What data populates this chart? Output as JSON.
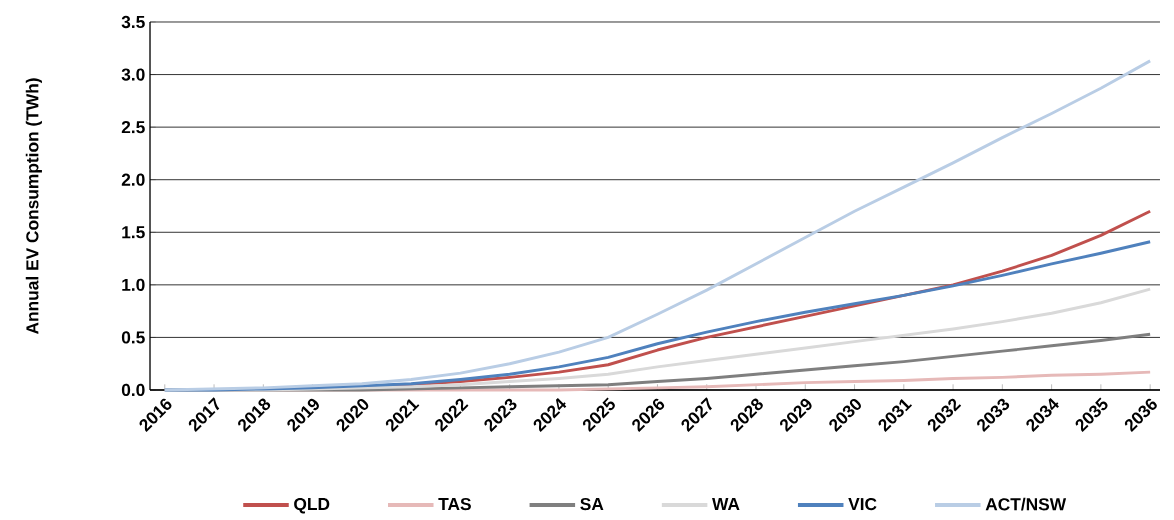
{
  "chart_data": {
    "type": "line",
    "ylabel": "Annual EV Consumption (TWh)",
    "categories": [
      "2016",
      "2017",
      "2018",
      "2019",
      "2020",
      "2021",
      "2022",
      "2023",
      "2024",
      "2025",
      "2026",
      "2027",
      "2028",
      "2029",
      "2030",
      "2031",
      "2032",
      "2033",
      "2034",
      "2035",
      "2036"
    ],
    "series": [
      {
        "name": "QLD",
        "color": "#c0504d",
        "values": [
          null,
          null,
          null,
          null,
          0.03,
          0.05,
          0.08,
          0.12,
          0.17,
          0.24,
          0.38,
          0.5,
          0.6,
          0.7,
          0.8,
          0.9,
          1.0,
          1.13,
          1.28,
          1.47,
          1.7
        ]
      },
      {
        "name": "TAS",
        "color": "#e6b9b8",
        "values": [
          0,
          0,
          0,
          0,
          0,
          0,
          0,
          0,
          0,
          0.01,
          0.02,
          0.03,
          0.05,
          0.07,
          0.08,
          0.09,
          0.11,
          0.12,
          0.14,
          0.15,
          0.17
        ]
      },
      {
        "name": "SA",
        "color": "#7f7f7f",
        "values": [
          0,
          0,
          0,
          0,
          0,
          0.01,
          0.02,
          0.03,
          0.04,
          0.05,
          0.08,
          0.11,
          0.15,
          0.19,
          0.23,
          0.27,
          0.32,
          0.37,
          0.42,
          0.47,
          0.53
        ]
      },
      {
        "name": "WA",
        "color": "#d9d9d9",
        "values": [
          0,
          0,
          0,
          0.01,
          0.02,
          0.03,
          0.05,
          0.08,
          0.11,
          0.15,
          0.22,
          0.28,
          0.34,
          0.4,
          0.46,
          0.52,
          0.58,
          0.65,
          0.73,
          0.83,
          0.96
        ]
      },
      {
        "name": "VIC",
        "color": "#4f81bd",
        "values": [
          0,
          0,
          0.01,
          0.02,
          0.04,
          0.06,
          0.1,
          0.15,
          0.22,
          0.31,
          0.44,
          0.55,
          0.65,
          0.74,
          0.82,
          0.9,
          0.99,
          1.09,
          1.2,
          1.3,
          1.41
        ]
      },
      {
        "name": "ACT/NSW",
        "color": "#b9cde5",
        "values": [
          0,
          0.01,
          0.02,
          0.04,
          0.06,
          0.1,
          0.16,
          0.25,
          0.36,
          0.5,
          0.72,
          0.95,
          1.2,
          1.45,
          1.7,
          1.93,
          2.16,
          2.4,
          2.63,
          2.87,
          3.13
        ]
      }
    ],
    "ylim": [
      0,
      3.5
    ],
    "yticks": [
      {
        "value": 0,
        "label": "0.0"
      },
      0.5,
      {
        "value": 1,
        "label": "1.0"
      },
      1.5,
      {
        "value": 2,
        "label": "2.0"
      },
      2.5,
      {
        "value": 3,
        "label": "3.0"
      },
      3.5
    ],
    "grid": "y",
    "legend": "bottom",
    "marker": "none",
    "line_style": "solid"
  }
}
